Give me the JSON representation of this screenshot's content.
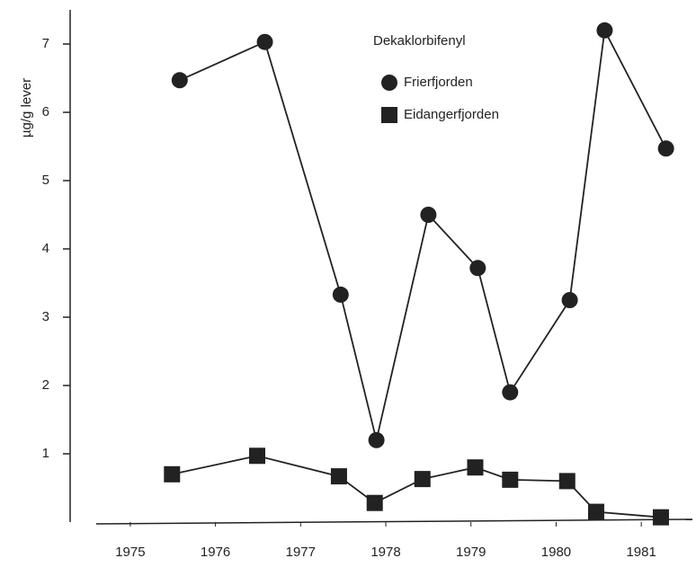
{
  "chart_data": {
    "type": "line",
    "y_label": "µg/g lever",
    "legend_title": "Dekaklorbifenyl",
    "xlim": [
      1974.6,
      1981.6
    ],
    "xticks": [
      1975,
      1976,
      1977,
      1978,
      1979,
      1980,
      1981
    ],
    "ylim": [
      0,
      7.5
    ],
    "yticks": [
      1,
      2,
      3,
      4,
      5,
      6,
      7
    ],
    "series": [
      {
        "name": "Frierfjorden",
        "color": "#222222",
        "marker": "circle",
        "x": [
          1975.58,
          1976.58,
          1977.47,
          1977.89,
          1978.5,
          1979.08,
          1979.46,
          1980.16,
          1980.57,
          1981.29
        ],
        "values": [
          6.47,
          7.03,
          3.33,
          1.2,
          4.5,
          3.72,
          1.9,
          3.25,
          7.2,
          5.47
        ]
      },
      {
        "name": "Eidangerfjorden",
        "color": "#222222",
        "marker": "square",
        "x": [
          1975.49,
          1976.49,
          1977.45,
          1977.87,
          1978.43,
          1979.05,
          1979.46,
          1980.13,
          1980.47,
          1981.23
        ],
        "values": [
          0.7,
          0.97,
          0.67,
          0.28,
          0.63,
          0.8,
          0.62,
          0.6,
          0.15,
          0.07
        ]
      }
    ]
  }
}
